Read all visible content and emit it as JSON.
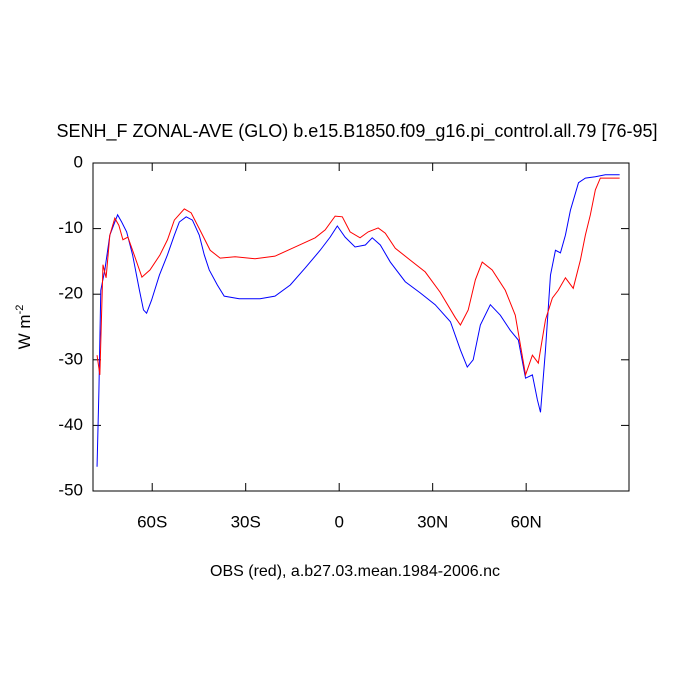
{
  "chart_data": {
    "type": "line",
    "title": "SENH_F ZONAL-AVE (GLO) b.e15.B1850.f09_g16.pi_control.all.79 [76-95]",
    "ylabel": "W m",
    "ylabel_superscript": "-2",
    "xlabel": "OBS (red), a.b27.03.mean.1984-2006.nc",
    "xlim": [
      -79,
      93
    ],
    "ylim": [
      -50,
      0
    ],
    "xticks": [
      {
        "value": -60,
        "label": "60S"
      },
      {
        "value": -30,
        "label": "30S"
      },
      0,
      {
        "value": 30,
        "label": "30N"
      },
      {
        "value": 60,
        "label": "60N"
      }
    ],
    "yticks": [
      -50,
      -40,
      -30,
      -20,
      -10,
      0
    ],
    "series": [
      {
        "color": "#0000ff",
        "x": [
          -77.7,
          -77.1,
          -76.5,
          -75.2,
          -73.6,
          -72.0,
          -71.1,
          -69.8,
          -68.2,
          -66.3,
          -64.1,
          -62.8,
          -61.8,
          -60.2,
          -57.7,
          -55.1,
          -52.9,
          -51.3,
          -49.1,
          -47.1,
          -44.9,
          -43.3,
          -41.7,
          -39.1,
          -36.9,
          -32.1,
          -25.4,
          -20.6,
          -15.7,
          -10.9,
          -6.1,
          -2.9,
          -0.6,
          1.9,
          5.1,
          8.4,
          10.6,
          13.2,
          16.4,
          21.2,
          26.0,
          30.8,
          35.7,
          38.9,
          41.1,
          43.0,
          45.3,
          48.5,
          51.7,
          54.9,
          57.5,
          59.8,
          62.0,
          63.6,
          64.6,
          66.2,
          67.8,
          69.4,
          71.0,
          72.6,
          74.2,
          76.8,
          79.0,
          82.2,
          85.4,
          90
        ],
        "values": [
          -46.3,
          -34.6,
          -19.4,
          -16.3,
          -11.0,
          -9.0,
          -7.9,
          -9.0,
          -10.5,
          -14.0,
          -19.4,
          -22.4,
          -22.9,
          -20.9,
          -17.1,
          -14.0,
          -11.0,
          -9.0,
          -8.2,
          -8.7,
          -11.0,
          -14.0,
          -16.3,
          -18.6,
          -20.3,
          -20.7,
          -20.7,
          -20.3,
          -18.6,
          -16.0,
          -13.3,
          -11.3,
          -9.6,
          -11.3,
          -12.8,
          -12.5,
          -11.4,
          -12.5,
          -15.1,
          -18.1,
          -19.8,
          -21.6,
          -24.2,
          -28.5,
          -31.1,
          -30.0,
          -24.7,
          -21.6,
          -23.2,
          -25.5,
          -27.0,
          -32.8,
          -32.3,
          -36.1,
          -38.0,
          -28.5,
          -17.1,
          -13.3,
          -13.7,
          -11.0,
          -7.2,
          -3.0,
          -2.3,
          -2.1,
          -1.8,
          -1.8
        ]
      },
      {
        "color": "#ff0000",
        "x": [
          -77.7,
          -76.8,
          -75.8,
          -74.8,
          -73.6,
          -72.0,
          -70.7,
          -69.4,
          -67.8,
          -66.3,
          -63.3,
          -60.7,
          -57.5,
          -55.1,
          -52.9,
          -49.7,
          -47.5,
          -44.7,
          -41.4,
          -38.2,
          -33.4,
          -27.0,
          -20.6,
          -14.1,
          -7.7,
          -4.5,
          -1.3,
          1.0,
          3.5,
          6.7,
          9.3,
          12.5,
          14.8,
          18.0,
          22.8,
          27.6,
          32.4,
          37.3,
          38.9,
          41.4,
          43.7,
          45.9,
          49.1,
          53.3,
          56.5,
          59.8,
          62.0,
          63.9,
          66.2,
          68.4,
          70.3,
          72.6,
          75.1,
          77.4,
          79.0,
          80.6,
          82.2,
          83.8,
          90
        ],
        "values": [
          -29.3,
          -32.3,
          -15.5,
          -17.5,
          -11.0,
          -8.4,
          -9.5,
          -11.7,
          -11.3,
          -13.3,
          -17.4,
          -16.3,
          -14.0,
          -11.7,
          -8.7,
          -7.0,
          -7.6,
          -10.2,
          -13.3,
          -14.5,
          -14.3,
          -14.6,
          -14.2,
          -12.8,
          -11.4,
          -10.2,
          -8.1,
          -8.2,
          -10.5,
          -11.4,
          -10.5,
          -9.9,
          -10.7,
          -13.0,
          -14.8,
          -16.6,
          -19.7,
          -23.6,
          -24.7,
          -22.4,
          -17.8,
          -15.1,
          -16.3,
          -19.4,
          -23.2,
          -32.3,
          -29.3,
          -30.5,
          -23.9,
          -20.6,
          -19.4,
          -17.5,
          -19.1,
          -14.8,
          -11.0,
          -7.9,
          -4.1,
          -2.3,
          -2.3
        ]
      }
    ]
  }
}
